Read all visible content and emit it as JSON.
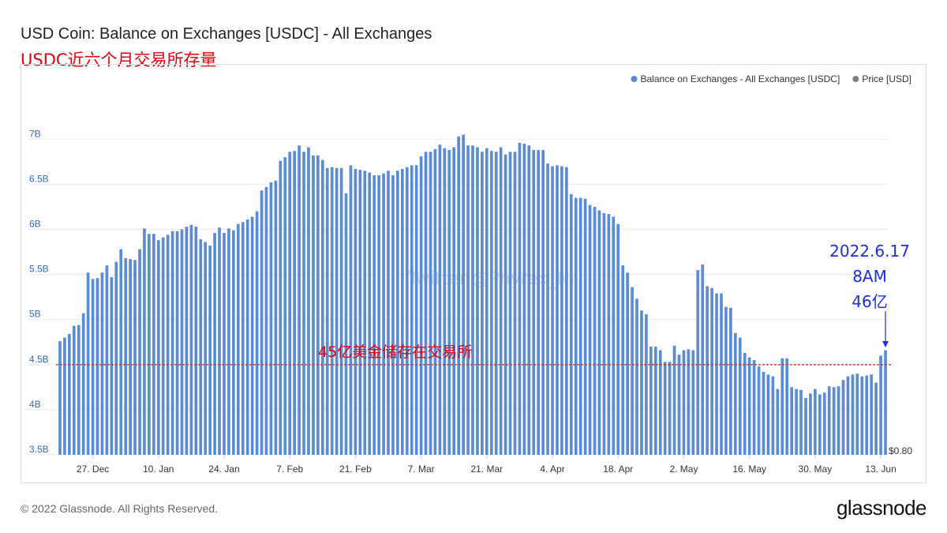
{
  "title": "USD Coin: Balance on Exchanges [USDC] - All Exchanges",
  "subtitle": "USDC近六个月交易所存量",
  "footer": "© 2022 Glassnode. All Rights Reserved.",
  "brand": "glassnode",
  "watermark": "Twitter @Phyrex_Ni",
  "colors": {
    "bar": "#5b8bd3",
    "price": "#7f7f7f",
    "ref_line": "#c0392b",
    "annotation_blue": "#1a2fe0",
    "annotation_red": "#e3000f"
  },
  "chart_data": {
    "type": "bar",
    "legend": [
      {
        "name": "Balance on Exchanges - All Exchanges [USDC]",
        "color": "#5b8bd3"
      },
      {
        "name": "Price [USD]",
        "color": "#7f7f7f"
      }
    ],
    "legend_position": "top-right",
    "ylim": [
      3.5,
      7.3
    ],
    "y_ticks": [
      {
        "value": 3.5,
        "label": "3.5B"
      },
      {
        "value": 4,
        "label": "4B"
      },
      {
        "value": 4.5,
        "label": "4.5B"
      },
      {
        "value": 5,
        "label": "5B"
      },
      {
        "value": 5.5,
        "label": "5.5B"
      },
      {
        "value": 6,
        "label": "6B"
      },
      {
        "value": 6.5,
        "label": "6.5B"
      },
      {
        "value": 7,
        "label": "7B"
      }
    ],
    "right_axis_label": "$0.80",
    "x_ticks": [
      {
        "index": 7,
        "label": "27. Dec"
      },
      {
        "index": 21,
        "label": "10. Jan"
      },
      {
        "index": 35,
        "label": "24. Jan"
      },
      {
        "index": 49,
        "label": "7. Feb"
      },
      {
        "index": 63,
        "label": "21. Feb"
      },
      {
        "index": 77,
        "label": "7. Mar"
      },
      {
        "index": 91,
        "label": "21. Mar"
      },
      {
        "index": 105,
        "label": "4. Apr"
      },
      {
        "index": 119,
        "label": "18. Apr"
      },
      {
        "index": 133,
        "label": "2. May"
      },
      {
        "index": 147,
        "label": "16. May"
      },
      {
        "index": 161,
        "label": "30. May"
      },
      {
        "index": 175,
        "label": "13. Jun"
      }
    ],
    "values": [
      4.76,
      4.8,
      4.84,
      4.93,
      4.94,
      5.07,
      5.52,
      5.45,
      5.46,
      5.52,
      5.6,
      5.47,
      5.64,
      5.78,
      5.68,
      5.67,
      5.66,
      5.78,
      6.01,
      5.95,
      5.95,
      5.88,
      5.91,
      5.94,
      5.98,
      5.98,
      6.0,
      6.03,
      6.05,
      6.03,
      5.89,
      5.86,
      5.82,
      5.96,
      6.02,
      5.96,
      6.01,
      5.99,
      6.06,
      6.08,
      6.11,
      6.14,
      6.2,
      6.43,
      6.47,
      6.52,
      6.54,
      6.76,
      6.8,
      6.86,
      6.87,
      6.93,
      6.86,
      6.91,
      6.82,
      6.82,
      6.77,
      6.68,
      6.69,
      6.68,
      6.68,
      6.4,
      6.71,
      6.67,
      6.66,
      6.65,
      6.63,
      6.6,
      6.6,
      6.62,
      6.65,
      6.6,
      6.65,
      6.67,
      6.69,
      6.71,
      6.71,
      6.81,
      6.86,
      6.86,
      6.89,
      6.94,
      6.9,
      6.88,
      6.91,
      7.03,
      7.05,
      6.93,
      6.93,
      6.91,
      6.86,
      6.9,
      6.87,
      6.86,
      6.91,
      6.83,
      6.86,
      6.86,
      6.96,
      6.95,
      6.93,
      6.88,
      6.88,
      6.88,
      6.73,
      6.7,
      6.71,
      6.7,
      6.69,
      6.39,
      6.35,
      6.35,
      6.34,
      6.27,
      6.25,
      6.21,
      6.18,
      6.17,
      6.14,
      6.06,
      5.6,
      5.52,
      5.36,
      5.23,
      5.1,
      5.06,
      4.7,
      4.7,
      4.66,
      4.53,
      4.53,
      4.71,
      4.61,
      4.66,
      4.67,
      4.66,
      5.55,
      5.61,
      5.37,
      5.35,
      5.29,
      5.29,
      5.14,
      5.13,
      4.85,
      4.8,
      4.63,
      4.58,
      4.55,
      4.48,
      4.42,
      4.39,
      4.37,
      4.23,
      4.57,
      4.57,
      4.25,
      4.23,
      4.22,
      4.13,
      4.18,
      4.23,
      4.17,
      4.19,
      4.26,
      4.25,
      4.26,
      4.33,
      4.37,
      4.39,
      4.4,
      4.37,
      4.38,
      4.39,
      4.3,
      4.6,
      4.66
    ],
    "reference_line": {
      "value": 4.5,
      "label": "45亿美金储存在交易所"
    },
    "annotation": {
      "lines": [
        "2022.6.17",
        "8AM",
        "46亿"
      ]
    }
  }
}
